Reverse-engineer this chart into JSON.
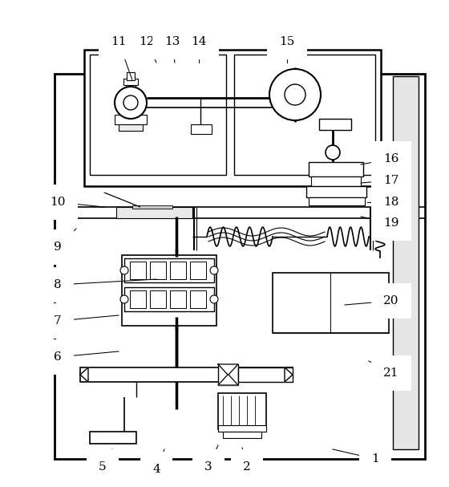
{
  "background_color": "#ffffff",
  "figsize": [
    5.6,
    6.07
  ],
  "dpi": 100,
  "labels_data": [
    [
      "1",
      468,
      572,
      415,
      560
    ],
    [
      "2",
      308,
      582,
      302,
      558
    ],
    [
      "3",
      260,
      582,
      272,
      555
    ],
    [
      "4",
      195,
      585,
      205,
      560
    ],
    [
      "5",
      128,
      582,
      140,
      560
    ],
    [
      "6",
      72,
      445,
      148,
      438
    ],
    [
      "7",
      72,
      400,
      148,
      393
    ],
    [
      "8",
      72,
      355,
      195,
      348
    ],
    [
      "9",
      72,
      308,
      95,
      285
    ],
    [
      "10",
      72,
      252,
      130,
      258
    ],
    [
      "11",
      148,
      52,
      165,
      100
    ],
    [
      "12",
      183,
      52,
      195,
      78
    ],
    [
      "13",
      215,
      52,
      218,
      78
    ],
    [
      "14",
      248,
      52,
      248,
      78
    ],
    [
      "15",
      358,
      52,
      358,
      78
    ],
    [
      "16",
      488,
      198,
      450,
      205
    ],
    [
      "17",
      488,
      225,
      450,
      228
    ],
    [
      "18",
      488,
      252,
      458,
      252
    ],
    [
      "19",
      488,
      278,
      450,
      270
    ],
    [
      "20",
      488,
      375,
      430,
      380
    ],
    [
      "21",
      488,
      465,
      460,
      450
    ]
  ]
}
